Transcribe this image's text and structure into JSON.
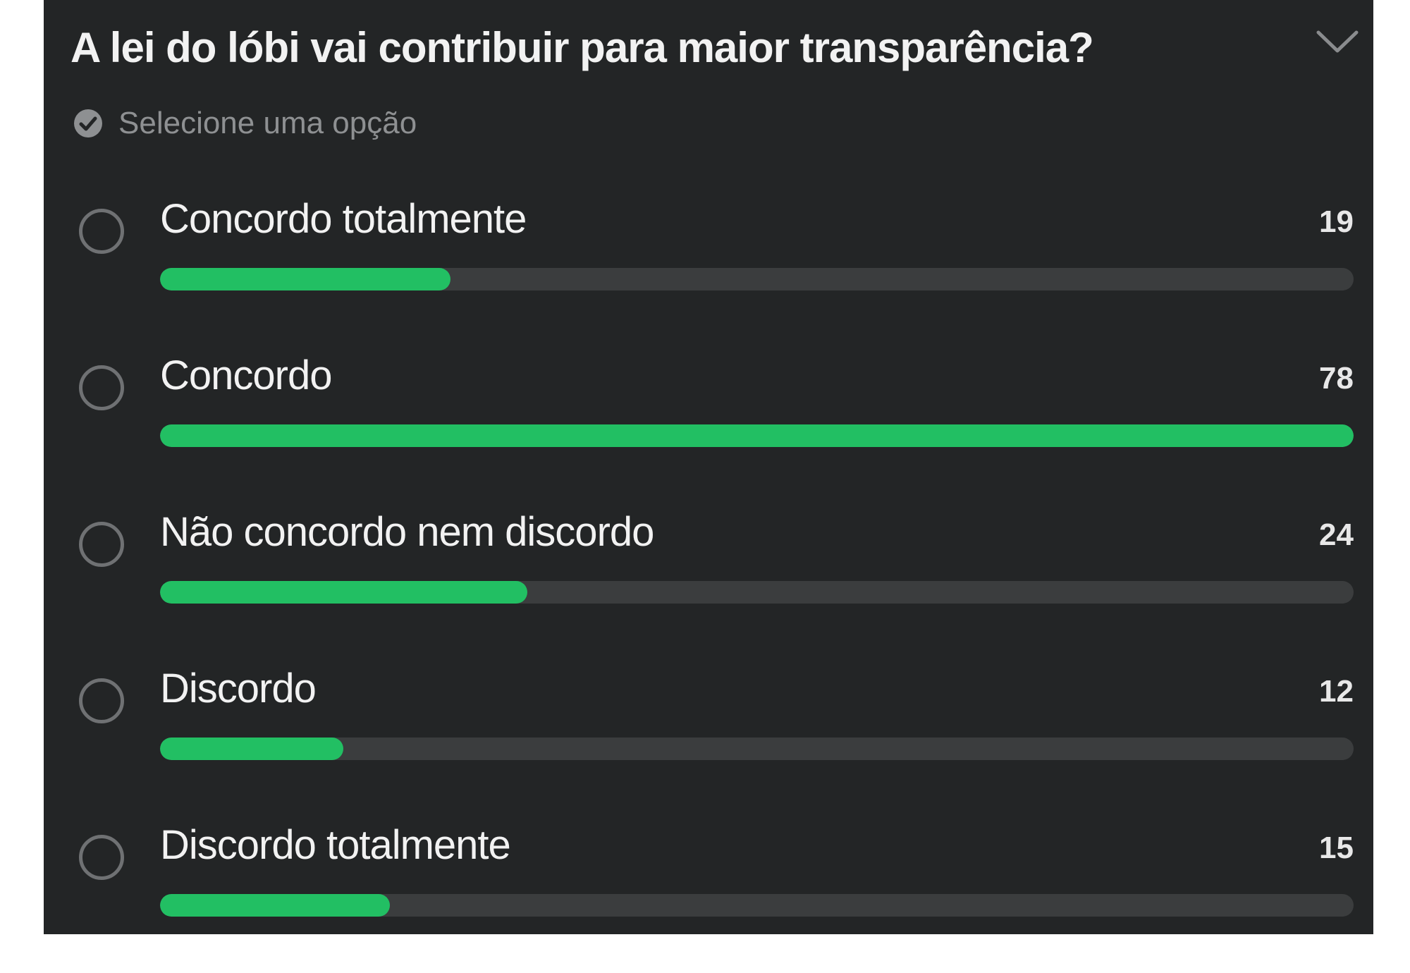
{
  "poll": {
    "title": "A lei do lóbi vai contribuir para maior transparência?",
    "hint": "Selecione uma opção",
    "max_votes": 78,
    "colors": {
      "fill": "#22bf63",
      "track": "#3b3d3e",
      "background": "#232526"
    },
    "icons": {
      "hint": "check-circle-icon",
      "toggle": "chevron-down-icon",
      "option": "radio-empty-icon"
    },
    "options": [
      {
        "label": "Concordo totalmente",
        "count": "19",
        "value": 19
      },
      {
        "label": "Concordo",
        "count": "78",
        "value": 78
      },
      {
        "label": "Não concordo nem discordo",
        "count": "24",
        "value": 24
      },
      {
        "label": "Discordo",
        "count": "12",
        "value": 12
      },
      {
        "label": "Discordo totalmente",
        "count": "15",
        "value": 15
      }
    ]
  }
}
